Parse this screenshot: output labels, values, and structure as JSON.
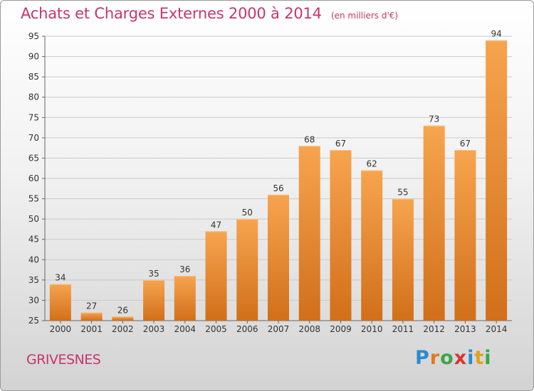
{
  "title": "Achats et Charges Externes 2000 à 2014",
  "subtitle": "(en milliers d'€)",
  "commune": "GRIVESNES",
  "logo": {
    "text": "Proxiti",
    "letters": [
      {
        "ch": "P",
        "color": "#2a8bd0"
      },
      {
        "ch": "r",
        "color": "#e07a1f"
      },
      {
        "ch": "o",
        "color": "#3aa64b"
      },
      {
        "ch": "x",
        "color": "#d8352f"
      },
      {
        "ch": "i",
        "color": "#2a8bd0"
      },
      {
        "ch": "t",
        "color": "#e0a21f"
      },
      {
        "ch": "i",
        "color": "#3aa64b"
      }
    ]
  },
  "colors": {
    "title": "#c8356b",
    "bar_top": "#f7a44f",
    "bar_bottom": "#d16f1a",
    "grid": "#c9c9c9"
  },
  "chart_data": {
    "type": "bar",
    "categories": [
      "2000",
      "2001",
      "2002",
      "2003",
      "2004",
      "2005",
      "2006",
      "2007",
      "2008",
      "2009",
      "2010",
      "2011",
      "2012",
      "2013",
      "2014"
    ],
    "values": [
      34,
      27,
      26,
      35,
      36,
      47,
      50,
      56,
      68,
      67,
      62,
      55,
      73,
      67,
      94
    ],
    "ylim": [
      25,
      95
    ],
    "yticks": [
      25,
      30,
      35,
      40,
      45,
      50,
      55,
      60,
      65,
      70,
      75,
      80,
      85,
      90,
      95
    ],
    "grid": true,
    "data_labels": true
  }
}
